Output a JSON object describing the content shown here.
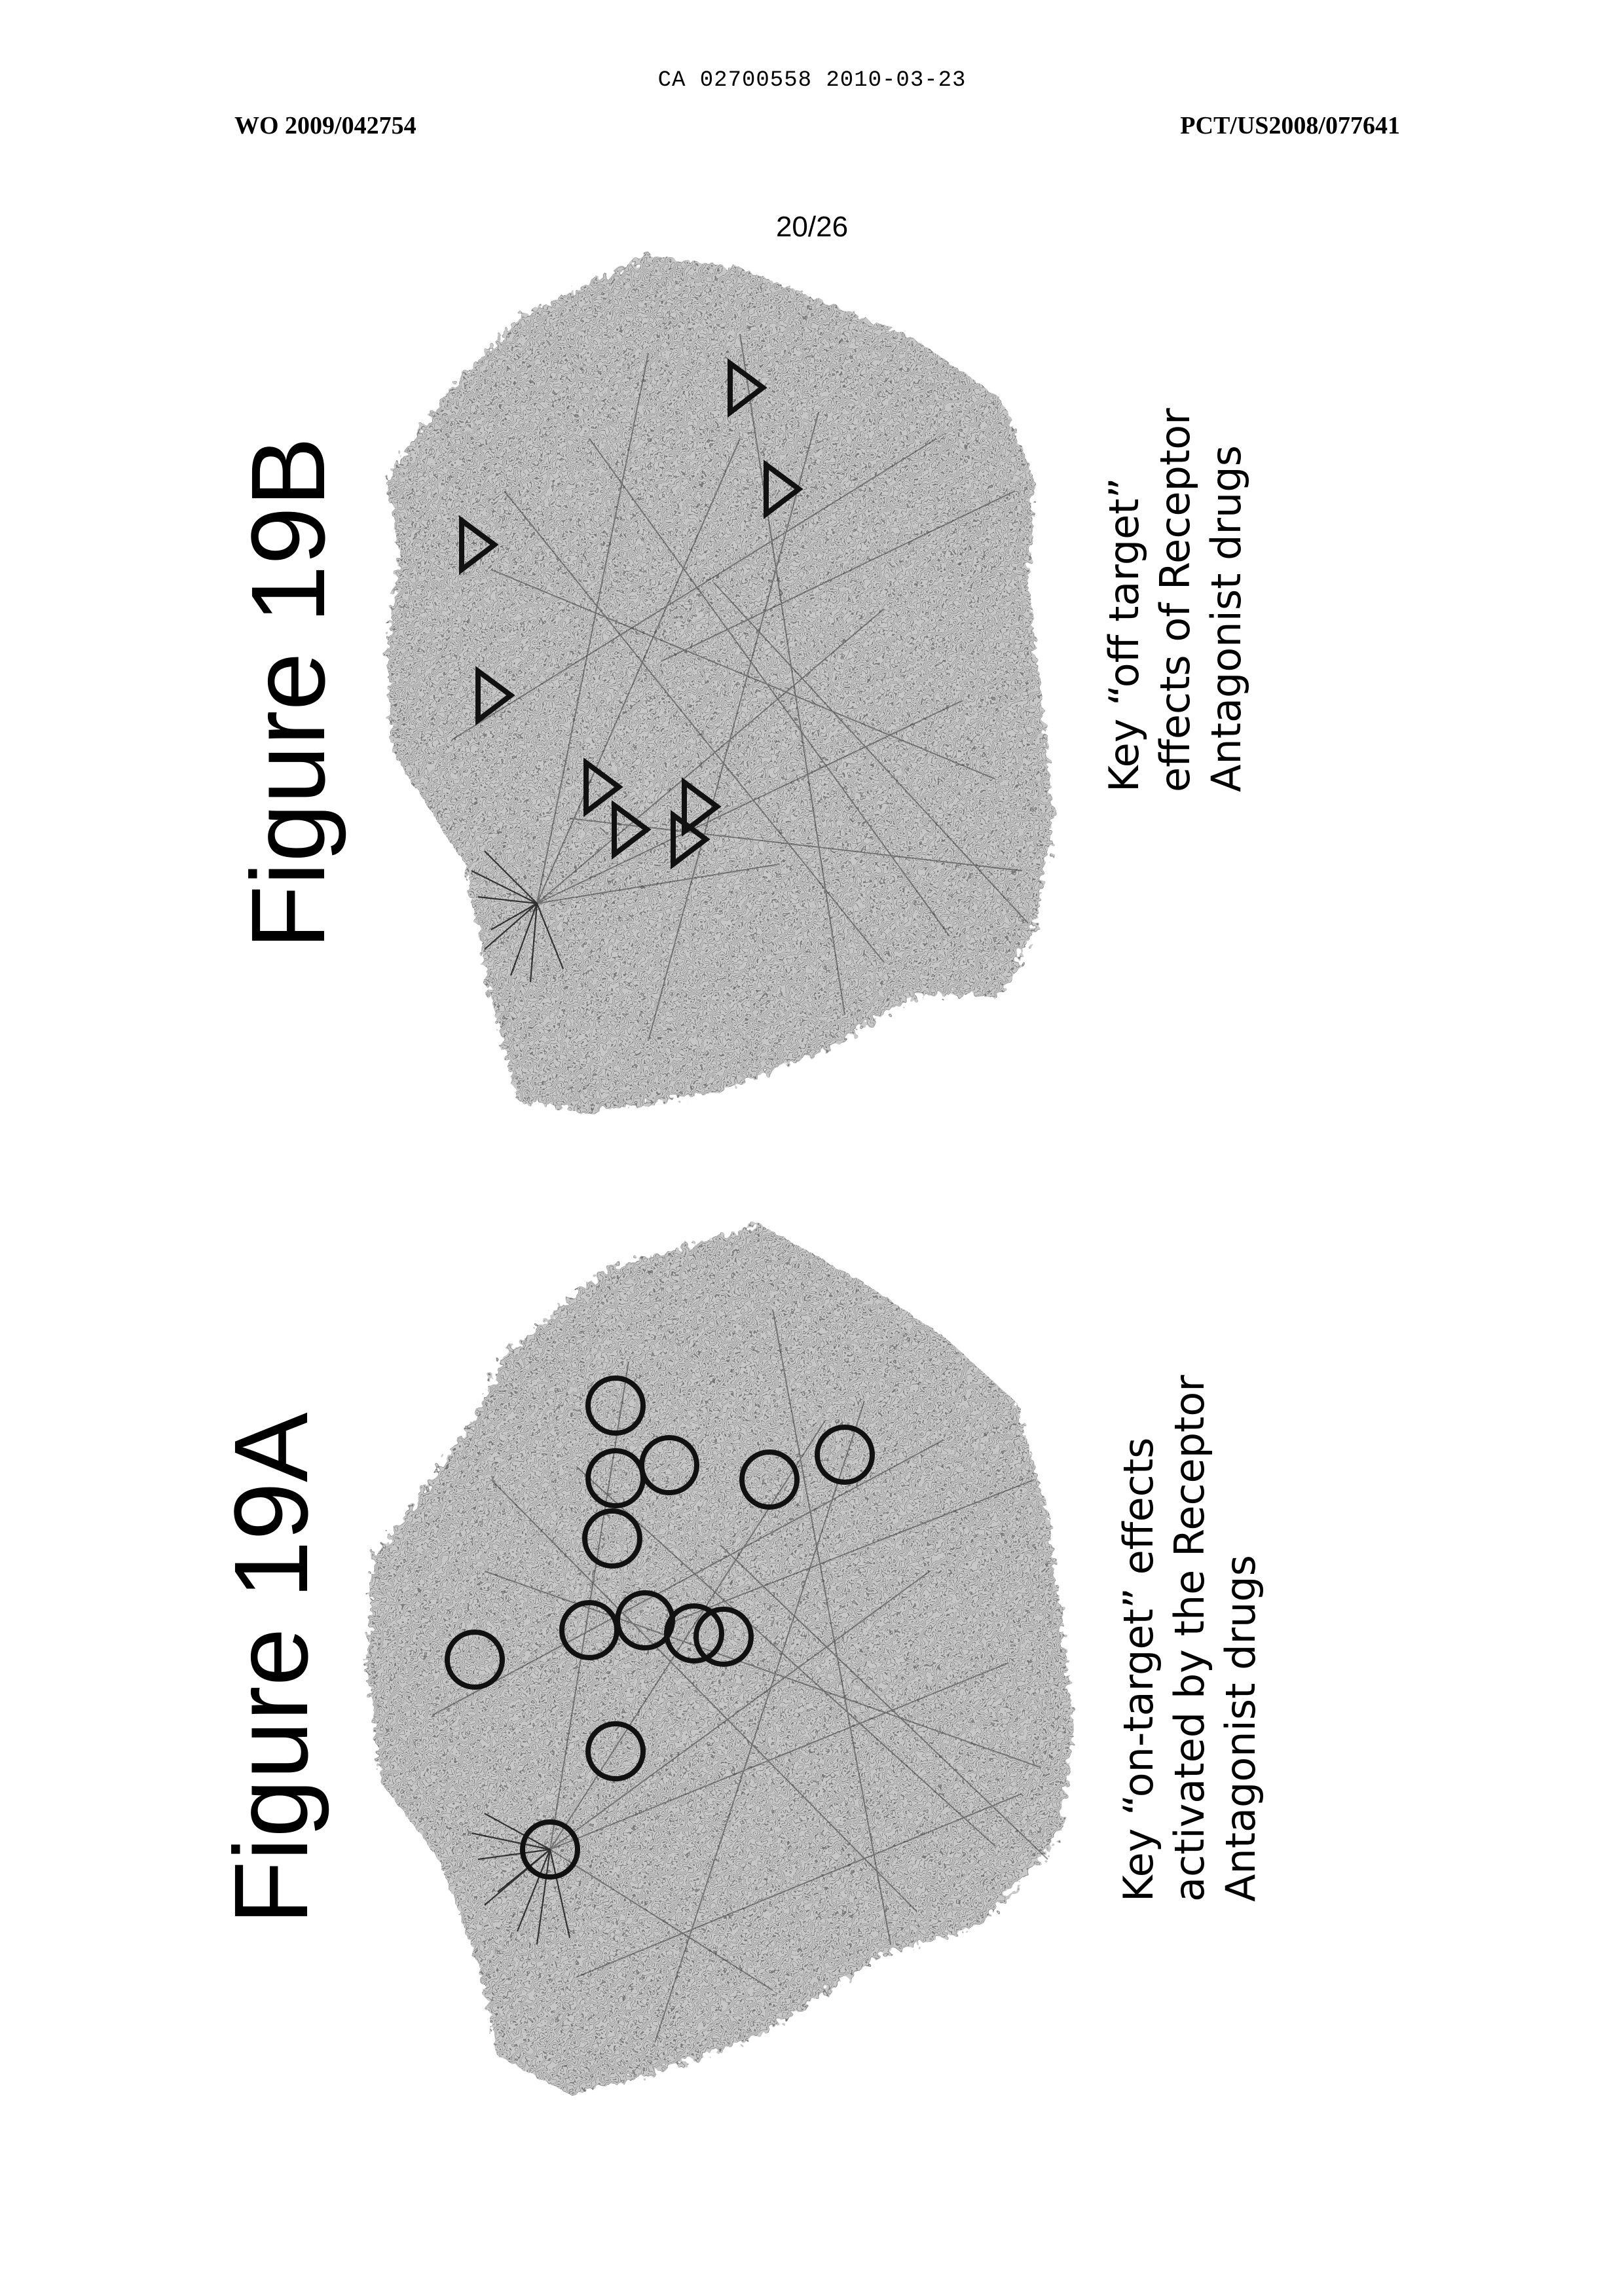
{
  "header": {
    "ca_number": "CA 02700558 2010-03-23",
    "publication_number": "WO 2009/042754",
    "application_number": "PCT/US2008/077641"
  },
  "sheet": "20/26",
  "figures": [
    {
      "id": "19A",
      "title": "Figure 19A",
      "marker": "circle",
      "marker_count": 13,
      "caption_lines": [
        "Key “on-target” effects",
        "activated by the Receptor",
        "Antagonist drugs"
      ]
    },
    {
      "id": "19B",
      "title": "Figure 19B",
      "marker": "triangle",
      "marker_count": 8,
      "caption_lines": [
        "Key “off target”",
        "effects of Receptor",
        "Antagonist drugs"
      ]
    }
  ],
  "colors": {
    "network": "#9a9a9a",
    "network_dark": "#5a5a5a",
    "marker": "#111111"
  }
}
